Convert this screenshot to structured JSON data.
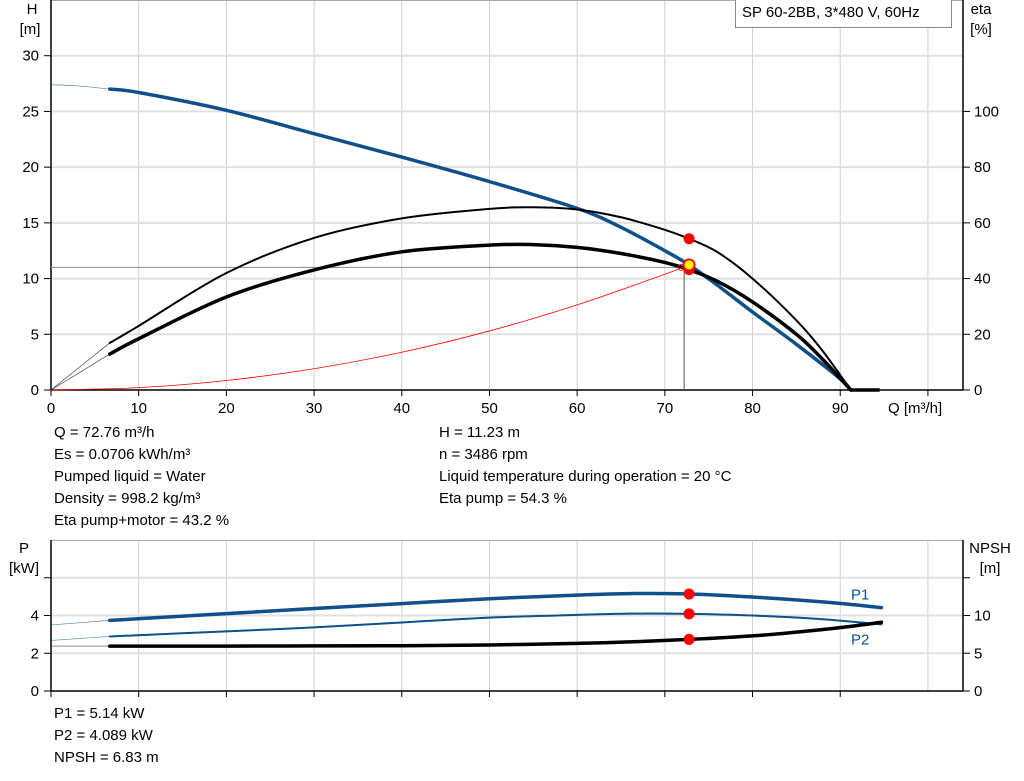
{
  "title": "SP 60-2BB, 3*480 V, 60Hz",
  "colors": {
    "head": "#0f4f8a",
    "eta": "#000000",
    "system": "#ff0000",
    "point": "#ff0000",
    "point_fill_duty": "#ffff00",
    "p1": "#0f4f8a",
    "p2": "#0f4f8a",
    "npsh": "#000000",
    "grid": "#d0d0d0"
  },
  "info_top": {
    "left": [
      "Q = 72.76 m³/h",
      "Es = 0.0706 kWh/m³",
      "Pumped liquid = Water",
      "Density = 998.2 kg/m³",
      "Eta pump+motor = 43.2 %"
    ],
    "right": [
      "H = 11.23 m",
      "n = 3486 rpm",
      "Liquid temperature during operation = 20 °C",
      "Eta pump = 54.3 %"
    ]
  },
  "info_bottom": [
    "P1 = 5.14 kW",
    "P2 = 4.089 kW",
    "NPSH = 6.83 m"
  ],
  "chart_data": [
    {
      "type": "line",
      "title": "SP 60-2BB, 3*480 V, 60Hz",
      "xlabel": "Q [m³/h]",
      "ylabel": [
        "H",
        "[m]"
      ],
      "y2label": [
        "eta",
        "[%]"
      ],
      "xlim": [
        0,
        104
      ],
      "ylim": [
        0,
        35
      ],
      "y2lim": [
        0,
        140
      ],
      "xticks": [
        0,
        10,
        20,
        30,
        40,
        50,
        60,
        70,
        80,
        90
      ],
      "yticks": [
        0,
        5,
        10,
        15,
        20,
        25,
        30
      ],
      "y2ticks": [
        0,
        20,
        40,
        60,
        80,
        100
      ],
      "grid": true,
      "series": [
        {
          "id": "head",
          "axis": "y",
          "x": [
            6.7,
            10,
            20,
            30,
            40,
            50,
            60,
            65,
            70,
            72.76,
            76,
            80,
            85,
            90,
            91.2
          ],
          "y": [
            27.0,
            26.7,
            25.1,
            23.0,
            20.9,
            18.7,
            16.3,
            14.6,
            12.5,
            11.23,
            9.4,
            7.0,
            4.1,
            1.0,
            0
          ],
          "ext_x": [
            0,
            3,
            6.7
          ],
          "ext_y": [
            27.4,
            27.3,
            27.0
          ],
          "tail_x": [
            91.2,
            94.5
          ],
          "tail_y": [
            0,
            0
          ]
        },
        {
          "id": "eta-pump",
          "axis": "y2",
          "x": [
            6.7,
            10,
            20,
            30,
            40,
            50,
            55,
            60,
            65,
            70,
            72.76,
            76,
            80,
            85,
            88,
            91.2
          ],
          "y": [
            16.9,
            23,
            42,
            54.6,
            61.6,
            65,
            65.6,
            64.8,
            62,
            57.5,
            54.3,
            49.5,
            40,
            25,
            14,
            0
          ],
          "ext_x": [
            0,
            6.7
          ],
          "ext_y": [
            0,
            16.9
          ]
        },
        {
          "id": "eta-pump-motor",
          "axis": "y2",
          "x": [
            6.7,
            10,
            20,
            30,
            40,
            50,
            55,
            60,
            65,
            70,
            72.76,
            76,
            80,
            85,
            88,
            91.2
          ],
          "y": [
            12.9,
            18.4,
            33.4,
            43.1,
            49.6,
            52,
            52.2,
            51.2,
            49,
            45.8,
            43.2,
            39,
            31.6,
            20,
            11,
            0
          ],
          "ext_x": [
            0,
            6.7
          ],
          "ext_y": [
            0,
            12.9
          ]
        },
        {
          "id": "system-curve",
          "axis": "y",
          "x": [
            0,
            10,
            20,
            30,
            40,
            50,
            60,
            70,
            72.76
          ],
          "y": [
            0,
            0.21,
            0.85,
            1.91,
            3.39,
            5.3,
            7.64,
            10.39,
            11.23
          ]
        }
      ],
      "duty_point": {
        "q": 72.76,
        "h": 11.23,
        "eta_pump": 54.3,
        "eta_pump_motor": 43.2
      },
      "reference_lines": {
        "h": 11.0,
        "q": 72.2
      }
    },
    {
      "type": "line",
      "ylabel": [
        "P",
        "[kW]"
      ],
      "y2label": [
        "NPSH",
        "[m]"
      ],
      "xlim": [
        0,
        104
      ],
      "ylim": [
        0,
        8
      ],
      "y2lim": [
        0,
        20
      ],
      "xticks": [
        0,
        10,
        20,
        30,
        40,
        50,
        60,
        70,
        80,
        90
      ],
      "yticks": [
        0,
        2,
        4,
        6
      ],
      "ytick_labels": [
        "0",
        "2",
        "4",
        ""
      ],
      "y2ticks": [
        0,
        5,
        10,
        15
      ],
      "y2tick_labels": [
        "0",
        "5",
        "10",
        ""
      ],
      "grid": true,
      "series": [
        {
          "id": "p1",
          "name": "P1",
          "axis": "y",
          "x": [
            6.7,
            20,
            30,
            40,
            50,
            60,
            66,
            72.76,
            80,
            88,
            94.7
          ],
          "y": [
            3.74,
            4.1,
            4.37,
            4.63,
            4.89,
            5.08,
            5.16,
            5.14,
            4.98,
            4.72,
            4.42
          ],
          "ext_x": [
            0,
            6.7
          ],
          "ext_y": [
            3.5,
            3.74
          ]
        },
        {
          "id": "p2",
          "name": "P2",
          "axis": "y",
          "x": [
            6.7,
            20,
            30,
            40,
            50,
            60,
            66,
            72.76,
            80,
            88,
            94.7
          ],
          "y": [
            2.89,
            3.16,
            3.37,
            3.63,
            3.89,
            4.03,
            4.1,
            4.089,
            4.0,
            3.8,
            3.53
          ],
          "ext_x": [
            0,
            6.7
          ],
          "ext_y": [
            2.68,
            2.89
          ]
        },
        {
          "id": "npsh",
          "axis": "y2",
          "x": [
            6.7,
            20,
            30,
            40,
            50,
            60,
            66,
            72.76,
            80,
            85,
            90,
            94.7
          ],
          "y": [
            5.95,
            5.95,
            5.97,
            6.0,
            6.1,
            6.3,
            6.5,
            6.83,
            7.3,
            7.8,
            8.4,
            9.1
          ],
          "ext_x": [
            0,
            6.7
          ],
          "ext_y": [
            5.95,
            5.95
          ]
        }
      ],
      "duty_point": {
        "q": 72.76,
        "p1": 5.14,
        "p2": 4.089,
        "npsh": 6.83
      }
    }
  ]
}
